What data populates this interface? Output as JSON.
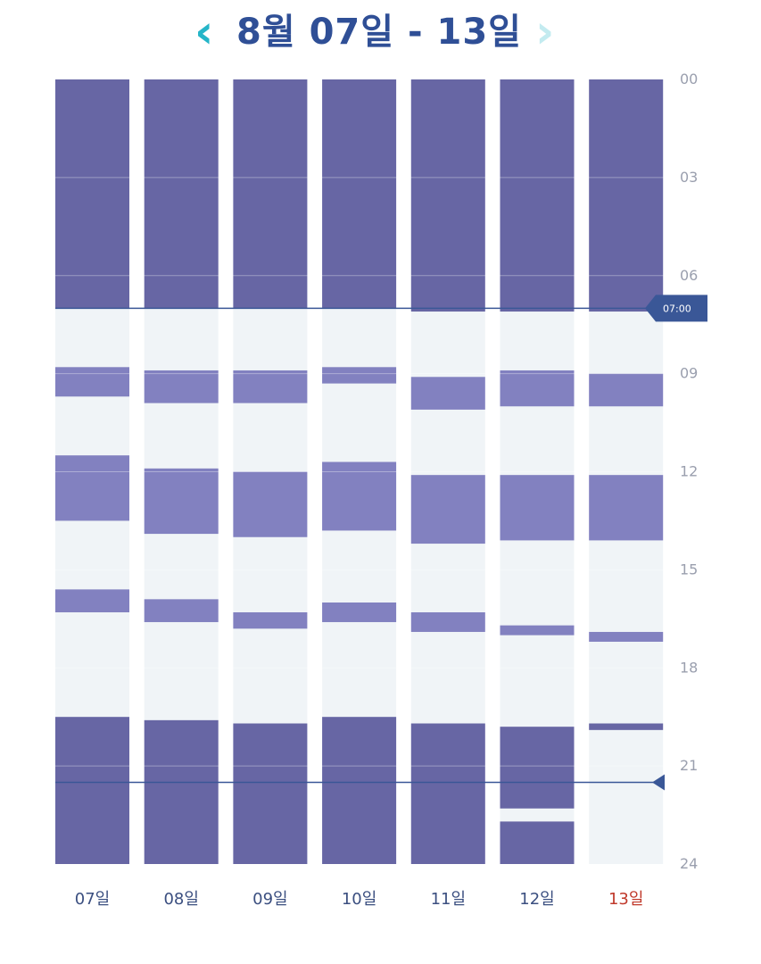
{
  "header": {
    "title": "8월 07일 - 13일",
    "prev_icon": "‹",
    "next_icon": "›"
  },
  "colors": {
    "title": "#2f4f96",
    "prev_arrow": "#25b5c8",
    "next_arrow": "#c3ebf0",
    "sleep": "#6766a4",
    "nap": "#8281c0",
    "awake": "#f0f4f7",
    "grid": "#e6e8ee",
    "marker": "#3a5797",
    "day_label": "#3b4f80",
    "today_label": "#c0392b"
  },
  "chart_data": {
    "type": "bar",
    "orientation": "vertical-timeline",
    "y_unit": "hour",
    "ylim": [
      0,
      24
    ],
    "y_ticks": [
      "00",
      "03",
      "06",
      "09",
      "12",
      "15",
      "18",
      "21",
      "24"
    ],
    "y_tick_values": [
      0,
      3,
      6,
      9,
      12,
      15,
      18,
      21,
      24
    ],
    "grid": true,
    "categories": [
      "07일",
      "08일",
      "09일",
      "10일",
      "11일",
      "12일",
      "13일"
    ],
    "highlight_category": "13일",
    "reference_lines": [
      {
        "value": 7.0,
        "label": "07:00"
      },
      {
        "value": 21.5,
        "label": ""
      }
    ],
    "series": [
      {
        "segments": [
          {
            "type": "sleep",
            "start": 0,
            "end": 7.0
          },
          {
            "type": "nap",
            "start": 8.8,
            "end": 9.7
          },
          {
            "type": "nap",
            "start": 11.5,
            "end": 13.5
          },
          {
            "type": "nap",
            "start": 15.6,
            "end": 16.3
          },
          {
            "type": "sleep",
            "start": 19.5,
            "end": 24
          }
        ]
      },
      {
        "segments": [
          {
            "type": "sleep",
            "start": 0,
            "end": 7.0
          },
          {
            "type": "nap",
            "start": 8.9,
            "end": 9.9
          },
          {
            "type": "nap",
            "start": 11.9,
            "end": 13.9
          },
          {
            "type": "nap",
            "start": 15.9,
            "end": 16.6
          },
          {
            "type": "sleep",
            "start": 19.6,
            "end": 24
          }
        ]
      },
      {
        "segments": [
          {
            "type": "sleep",
            "start": 0,
            "end": 7.0
          },
          {
            "type": "nap",
            "start": 8.9,
            "end": 9.9
          },
          {
            "type": "nap",
            "start": 12.0,
            "end": 14.0
          },
          {
            "type": "nap",
            "start": 16.3,
            "end": 16.8
          },
          {
            "type": "sleep",
            "start": 19.7,
            "end": 24
          }
        ]
      },
      {
        "segments": [
          {
            "type": "sleep",
            "start": 0,
            "end": 7.0
          },
          {
            "type": "nap",
            "start": 8.8,
            "end": 9.3
          },
          {
            "type": "nap",
            "start": 11.7,
            "end": 13.8
          },
          {
            "type": "nap",
            "start": 16.0,
            "end": 16.6
          },
          {
            "type": "sleep",
            "start": 19.5,
            "end": 24
          }
        ]
      },
      {
        "segments": [
          {
            "type": "sleep",
            "start": 0,
            "end": 7.1
          },
          {
            "type": "nap",
            "start": 9.1,
            "end": 10.1
          },
          {
            "type": "nap",
            "start": 12.1,
            "end": 14.2
          },
          {
            "type": "nap",
            "start": 16.3,
            "end": 16.9
          },
          {
            "type": "sleep",
            "start": 19.7,
            "end": 24
          }
        ]
      },
      {
        "segments": [
          {
            "type": "sleep",
            "start": 0,
            "end": 7.1
          },
          {
            "type": "nap",
            "start": 8.9,
            "end": 10.0
          },
          {
            "type": "nap",
            "start": 12.1,
            "end": 14.1
          },
          {
            "type": "nap",
            "start": 16.7,
            "end": 17.0
          },
          {
            "type": "sleep",
            "start": 19.8,
            "end": 22.3
          },
          {
            "type": "sleep",
            "start": 22.7,
            "end": 24
          }
        ]
      },
      {
        "segments": [
          {
            "type": "sleep",
            "start": 0,
            "end": 7.1
          },
          {
            "type": "nap",
            "start": 9.0,
            "end": 10.0
          },
          {
            "type": "nap",
            "start": 12.1,
            "end": 14.1
          },
          {
            "type": "nap",
            "start": 16.9,
            "end": 17.2
          },
          {
            "type": "sleep",
            "start": 19.7,
            "end": 19.9
          }
        ]
      }
    ]
  }
}
